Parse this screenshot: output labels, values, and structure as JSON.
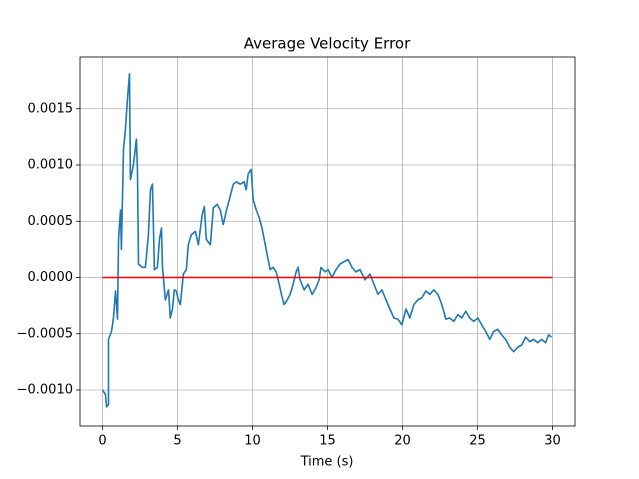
{
  "chart_data": {
    "type": "line",
    "title": "Average Velocity Error",
    "xlabel": "Time (s)",
    "xlim": [
      -1.5,
      31.5
    ],
    "ylim": [
      -0.00132,
      0.00196
    ],
    "xticks": [
      0,
      5,
      10,
      15,
      20,
      25,
      30
    ],
    "yticks": [
      {
        "value": -0.001,
        "label": "−0.0010"
      },
      {
        "value": -0.0005,
        "label": "−0.0005"
      },
      {
        "value": 0,
        "label": "0.0000"
      },
      0.0005,
      {
        "value": 0.001,
        "label": "0.0010"
      },
      0.0015
    ],
    "grid": true,
    "series": [
      {
        "color": "#1f77b4",
        "x": [
          0,
          0.2,
          0.27,
          0.4,
          0.4,
          0.6,
          0.73,
          0.87,
          1.0,
          1.07,
          1.2,
          1.26,
          1.4,
          1.53,
          1.66,
          1.8,
          1.86,
          2.06,
          2.26,
          2.33,
          2.4,
          2.66,
          2.86,
          3.06,
          3.2,
          3.33,
          3.46,
          3.66,
          3.8,
          3.93,
          4.0,
          4.19,
          4.4,
          4.52,
          4.66,
          4.79,
          4.92,
          5.06,
          5.19,
          5.39,
          5.59,
          5.72,
          5.92,
          6.19,
          6.39,
          6.52,
          6.65,
          6.79,
          6.92,
          7.19,
          7.39,
          7.65,
          7.85,
          8.05,
          8.25,
          8.45,
          8.72,
          8.92,
          9.18,
          9.45,
          9.58,
          9.71,
          9.91,
          10.05,
          10.25,
          10.45,
          10.65,
          10.78,
          10.98,
          11.18,
          11.38,
          11.58,
          11.78,
          11.98,
          12.11,
          12.31,
          12.51,
          12.71,
          12.91,
          13.04,
          13.17,
          13.44,
          13.71,
          13.97,
          14.24,
          14.44,
          14.57,
          14.84,
          15.04,
          15.3,
          15.57,
          15.84,
          16.1,
          16.37,
          16.63,
          16.9,
          17.17,
          17.5,
          17.83,
          18.1,
          18.36,
          18.63,
          18.9,
          19.16,
          19.43,
          19.69,
          19.96,
          20.23,
          20.49,
          20.76,
          21.02,
          21.29,
          21.56,
          21.82,
          22.09,
          22.36,
          22.62,
          22.89,
          23.15,
          23.42,
          23.69,
          23.95,
          24.22,
          24.48,
          24.75,
          25.02,
          25.28,
          25.55,
          25.82,
          26.08,
          26.35,
          26.61,
          26.88,
          27.15,
          27.41,
          27.68,
          27.94,
          28.21,
          28.48,
          28.74,
          29.01,
          29.27,
          29.54,
          29.74,
          29.94
        ],
        "values": [
          -0.001,
          -0.00104,
          -0.00115,
          -0.00113,
          -0.00055,
          -0.00048,
          -0.00036,
          -0.00012,
          -0.00037,
          0.00034,
          0.0006,
          0.00025,
          0.00114,
          0.00132,
          0.00158,
          0.00181,
          0.00087,
          0.001,
          0.00123,
          0.00096,
          0.00012,
          9e-05,
          9e-05,
          0.00038,
          0.00078,
          0.00083,
          7e-05,
          9e-05,
          0.00034,
          0.00044,
          9e-05,
          -0.0002,
          -0.00011,
          -0.00036,
          -0.00028,
          -0.00011,
          -0.00012,
          -0.0002,
          -0.00024,
          3e-05,
          7e-05,
          0.00029,
          0.00038,
          0.00041,
          0.00029,
          0.00043,
          0.00056,
          0.00063,
          0.00034,
          0.00029,
          0.00062,
          0.00065,
          0.0006,
          0.00047,
          0.00059,
          0.00069,
          0.00083,
          0.00085,
          0.00083,
          0.00085,
          0.00078,
          0.00092,
          0.00096,
          0.00069,
          0.0006,
          0.00053,
          0.00043,
          0.00034,
          0.0002,
          7e-05,
          9e-05,
          5e-05,
          -6e-05,
          -0.00018,
          -0.00024,
          -0.0002,
          -0.00015,
          -6e-05,
          5e-05,
          9e-05,
          -2e-05,
          -0.00011,
          -6e-05,
          -0.00015,
          -9e-05,
          -2e-05,
          9e-05,
          5e-05,
          7e-05,
          0,
          7e-05,
          0.00012,
          0.00014,
          0.00016,
          9e-05,
          5e-05,
          7e-05,
          -2e-05,
          3e-05,
          -6e-05,
          -0.00015,
          -0.00011,
          -0.0002,
          -0.00028,
          -0.00036,
          -0.00037,
          -0.00042,
          -0.00028,
          -0.00036,
          -0.00024,
          -0.0002,
          -0.00018,
          -0.00012,
          -0.00015,
          -0.00011,
          -0.00015,
          -0.00024,
          -0.00037,
          -0.00036,
          -0.00039,
          -0.00033,
          -0.00036,
          -0.0003,
          -0.00036,
          -0.00039,
          -0.00036,
          -0.00042,
          -0.00048,
          -0.00055,
          -0.00048,
          -0.00046,
          -0.00051,
          -0.00055,
          -0.00062,
          -0.00066,
          -0.00062,
          -0.0006,
          -0.00053,
          -0.00057,
          -0.00055,
          -0.00058,
          -0.00055,
          -0.00058,
          -0.00051,
          -0.00053
        ]
      },
      {
        "color": "#ff0000",
        "x": [
          0,
          30
        ],
        "values": [
          0,
          0
        ]
      }
    ]
  }
}
